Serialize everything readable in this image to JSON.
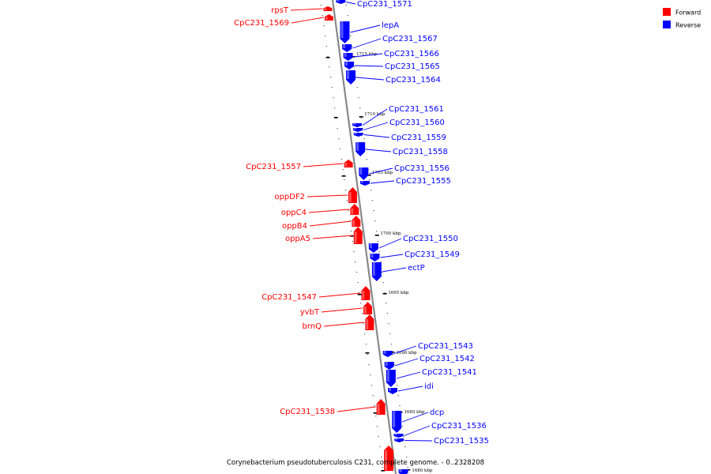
{
  "caption": "Corynebacterium pseudotuberculosis C231, complete genome. - 0..2328208",
  "colors": {
    "forward": "#ff0000",
    "reverse": "#0000ff",
    "backbone": "#888888"
  },
  "legend": [
    {
      "label": "Forward",
      "color": "#ff0000"
    },
    {
      "label": "Reverse",
      "color": "#0000ff"
    }
  ],
  "ticks": [
    {
      "label": "1715 kbp"
    },
    {
      "label": "1710 kbp"
    },
    {
      "label": "1705 kbp"
    },
    {
      "label": "1700 kbp"
    },
    {
      "label": "1695 kbp"
    },
    {
      "label": "1690 kbp"
    },
    {
      "label": "1685 kbp"
    },
    {
      "label": "1680 kbp"
    }
  ],
  "forward_genes": [
    {
      "name": "rpsT"
    },
    {
      "name": "CpC231_1569"
    },
    {
      "name": "CpC231_1557"
    },
    {
      "name": "oppDF2"
    },
    {
      "name": "oppC4"
    },
    {
      "name": "oppB4"
    },
    {
      "name": "oppA5"
    },
    {
      "name": "CpC231_1547"
    },
    {
      "name": "yvbT"
    },
    {
      "name": "brnQ"
    },
    {
      "name": "CpC231_1538"
    }
  ],
  "reverse_genes": [
    {
      "name": "CpC231_1571"
    },
    {
      "name": "lepA"
    },
    {
      "name": "CpC231_1567"
    },
    {
      "name": "CpC231_1566"
    },
    {
      "name": "CpC231_1565"
    },
    {
      "name": "CpC231_1564"
    },
    {
      "name": "CpC231_1561"
    },
    {
      "name": "CpC231_1560"
    },
    {
      "name": "CpC231_1559"
    },
    {
      "name": "CpC231_1558"
    },
    {
      "name": "CpC231_1556"
    },
    {
      "name": "CpC231_1555"
    },
    {
      "name": "CpC231_1550"
    },
    {
      "name": "CpC231_1549"
    },
    {
      "name": "ectP"
    },
    {
      "name": "CpC231_1543"
    },
    {
      "name": "CpC231_1542"
    },
    {
      "name": "CpC231_1541"
    },
    {
      "name": "idi"
    },
    {
      "name": "dcp"
    },
    {
      "name": "CpC231_1536"
    },
    {
      "name": "CpC231_1535"
    }
  ]
}
